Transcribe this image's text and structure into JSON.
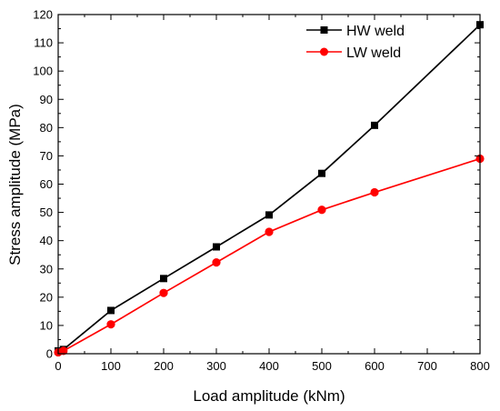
{
  "chart_data": {
    "type": "line",
    "title": "",
    "xlabel": "Load amplitude (kNm)",
    "ylabel": "Stress amplitude (MPa)",
    "xlim": [
      0,
      800
    ],
    "ylim": [
      0,
      120
    ],
    "xticks": [
      0,
      100,
      200,
      300,
      400,
      500,
      600,
      700,
      800
    ],
    "yticks": [
      0,
      10,
      20,
      30,
      40,
      50,
      60,
      70,
      80,
      90,
      100,
      110,
      120
    ],
    "grid": false,
    "legend_position": "top-right",
    "series": [
      {
        "name": "HW weld",
        "color": "#000000",
        "marker": "square",
        "x": [
          0,
          10,
          100,
          200,
          300,
          400,
          500,
          600,
          800
        ],
        "y": [
          1,
          1.5,
          15.3,
          26.6,
          37.8,
          49.1,
          63.8,
          80.8,
          116.4
        ]
      },
      {
        "name": "LW weld",
        "color": "#ff0000",
        "marker": "circle",
        "x": [
          0,
          10,
          100,
          200,
          300,
          400,
          500,
          600,
          800
        ],
        "y": [
          0.5,
          1,
          10.4,
          21.5,
          32.3,
          43.1,
          50.9,
          57.1,
          69
        ]
      }
    ]
  }
}
